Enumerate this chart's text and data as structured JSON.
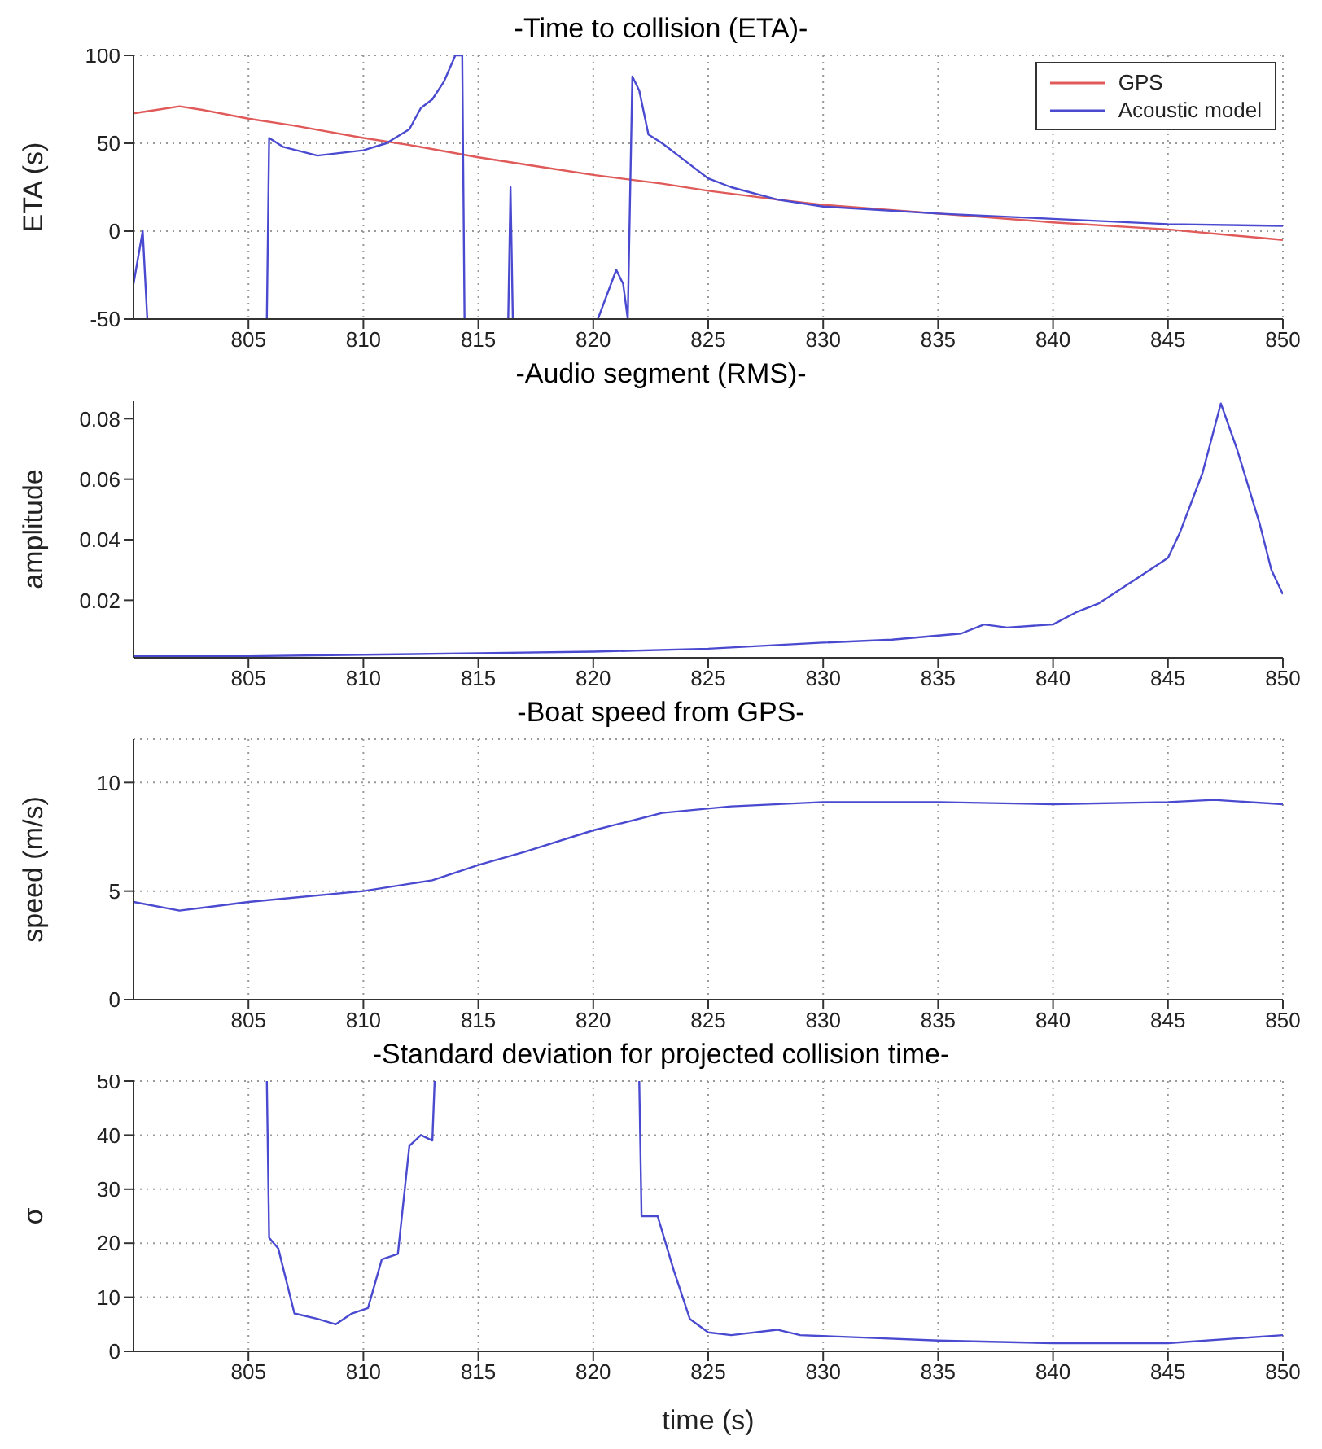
{
  "chart_data": [
    {
      "type": "line",
      "title": "-Time to collision (ETA)-",
      "ylabel": "ETA (s)",
      "xlim": [
        800,
        850
      ],
      "xticks": [
        805,
        810,
        815,
        820,
        825,
        830,
        835,
        840,
        845,
        850
      ],
      "ylim": [
        -50,
        100
      ],
      "yticks": [
        -50,
        0,
        50,
        100
      ],
      "grid": true,
      "legend": "top right",
      "series": [
        {
          "name": "GPS",
          "color": "#e05a5a",
          "x": [
            800,
            801,
            802,
            803,
            805,
            807,
            810,
            812,
            815,
            818,
            820,
            823,
            825,
            828,
            830,
            835,
            840,
            845,
            850
          ],
          "values": [
            67,
            69,
            71,
            69,
            64,
            60,
            53,
            49,
            42,
            36,
            32,
            27,
            23,
            18,
            15,
            10,
            5,
            1,
            -5
          ]
        },
        {
          "name": "Acoustic model",
          "color": "#4a4ad0",
          "x": [
            800,
            800.4,
            800.6,
            803,
            805.8,
            805.9,
            806.5,
            808,
            810,
            811,
            812,
            812.5,
            813,
            813.5,
            814,
            814.3,
            814.4,
            815,
            816.3,
            816.4,
            816.5,
            818,
            820.2,
            821,
            821.3,
            821.5,
            821.7,
            822,
            822.4,
            823,
            824,
            825,
            826,
            828,
            830,
            835,
            840,
            845,
            850
          ],
          "values": [
            -30,
            0,
            -50,
            null,
            -50,
            53,
            48,
            43,
            46,
            50,
            58,
            70,
            75,
            85,
            100,
            100,
            -50,
            null,
            -50,
            25,
            -50,
            null,
            -50,
            -22,
            -30,
            -50,
            88,
            80,
            55,
            50,
            40,
            30,
            25,
            18,
            14,
            10,
            7,
            4,
            3
          ]
        }
      ]
    },
    {
      "type": "line",
      "title": "-Audio segment (RMS)-",
      "ylabel": "amplitude",
      "xlim": [
        800,
        850
      ],
      "xticks": [
        805,
        810,
        815,
        820,
        825,
        830,
        835,
        840,
        845,
        850
      ],
      "ylim": [
        0.001,
        0.086
      ],
      "yticks": [
        0.02,
        0.04,
        0.06,
        0.08
      ],
      "series": [
        {
          "color": "#4a4ad0",
          "x": [
            800,
            805,
            810,
            815,
            820,
            825,
            830,
            833,
            836,
            837,
            838,
            840,
            841,
            842,
            843,
            844,
            845,
            845.5,
            846.5,
            847.3,
            848,
            849,
            849.5,
            850
          ],
          "values": [
            0.0015,
            0.0015,
            0.002,
            0.0025,
            0.003,
            0.004,
            0.006,
            0.007,
            0.009,
            0.012,
            0.011,
            0.012,
            0.016,
            0.019,
            0.024,
            0.029,
            0.034,
            0.042,
            0.062,
            0.085,
            0.07,
            0.045,
            0.03,
            0.022
          ]
        }
      ]
    },
    {
      "type": "line",
      "title": "-Boat speed from GPS-",
      "ylabel": "speed (m/s)",
      "xlim": [
        800,
        850
      ],
      "xticks": [
        805,
        810,
        815,
        820,
        825,
        830,
        835,
        840,
        845,
        850
      ],
      "ylim": [
        0,
        12
      ],
      "yticks": [
        0,
        5,
        10
      ],
      "grid": true,
      "series": [
        {
          "color": "#4a4ad0",
          "x": [
            800,
            802,
            805,
            810,
            813,
            815,
            817,
            820,
            823,
            826,
            830,
            835,
            840,
            845,
            847,
            850
          ],
          "values": [
            4.5,
            4.1,
            4.5,
            5.0,
            5.5,
            6.2,
            6.8,
            7.8,
            8.6,
            8.9,
            9.1,
            9.1,
            9.0,
            9.1,
            9.2,
            9.0
          ]
        }
      ]
    },
    {
      "type": "line",
      "title": "-Standard deviation for projected collision time-",
      "ylabel": "σ",
      "xlabel": "time (s)",
      "xlim": [
        800,
        850
      ],
      "xticks": [
        805,
        810,
        815,
        820,
        825,
        830,
        835,
        840,
        845,
        850
      ],
      "ylim": [
        0,
        50
      ],
      "yticks": [
        0,
        10,
        20,
        30,
        40,
        50
      ],
      "grid": true,
      "series": [
        {
          "color": "#4a4ad0",
          "x": [
            805.8,
            805.9,
            806.3,
            807,
            808,
            808.8,
            809.5,
            810.2,
            810.8,
            811.5,
            812,
            812.5,
            813,
            813.1,
            815,
            822,
            822.1,
            822.8,
            823.5,
            824.2,
            825,
            826,
            828,
            829,
            832,
            835,
            840,
            845,
            850
          ],
          "values": [
            50,
            21,
            19,
            7,
            6,
            5,
            7,
            8,
            17,
            18,
            38,
            40,
            39,
            50,
            null,
            50,
            25,
            25,
            15,
            6,
            3.5,
            3,
            4,
            3,
            2.5,
            2,
            1.5,
            1.5,
            3
          ]
        }
      ]
    }
  ]
}
